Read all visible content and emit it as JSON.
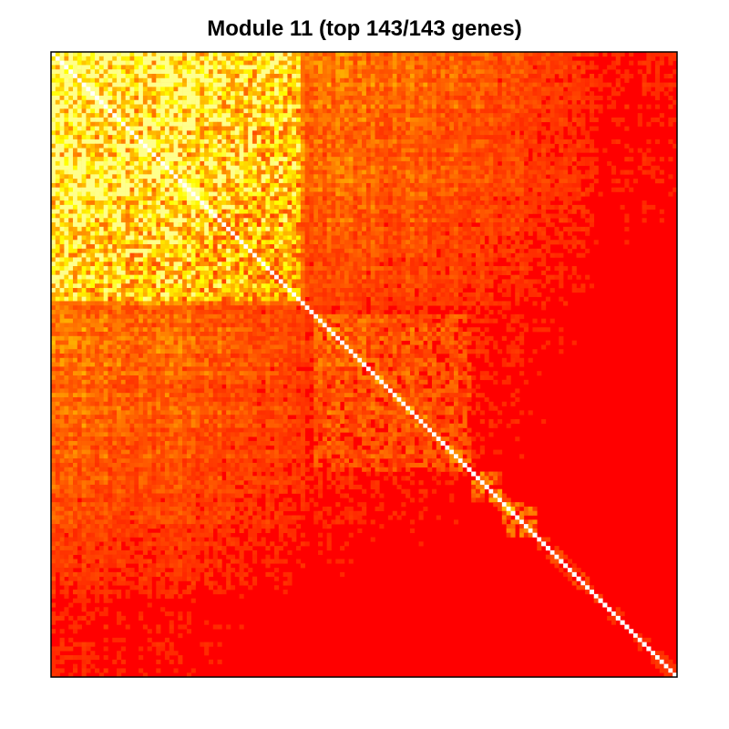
{
  "chart_data": {
    "type": "heatmap",
    "title": "Module 11 (top 143/143 genes)",
    "xlabel": "",
    "ylabel": "",
    "n_genes": 143,
    "value_range": [
      0,
      1
    ],
    "grid": false,
    "legend": "none",
    "colors": {
      "low": "#ff0000",
      "mid": "#ff8c00",
      "high": "#ffff80",
      "diagonal": "#ffffff",
      "border": "#000000"
    },
    "clusters": [
      {
        "start": 0,
        "end": 56,
        "strength": 0.62
      },
      {
        "start": 60,
        "end": 95,
        "strength": 0.22
      },
      {
        "start": 96,
        "end": 102,
        "strength": 0.35
      },
      {
        "start": 103,
        "end": 110,
        "strength": 0.45
      },
      {
        "start": 111,
        "end": 125,
        "strength": 0.06
      }
    ]
  }
}
